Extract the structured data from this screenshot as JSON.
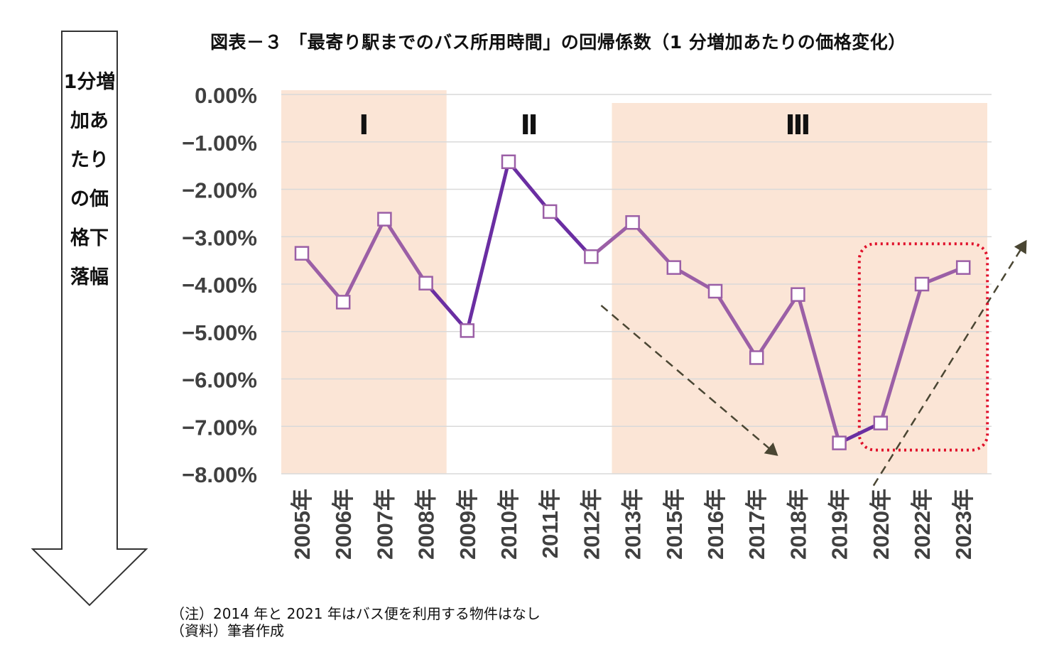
{
  "title": "図表－３ 「最寄り駅までのバス所用時間」の回帰係数（1 分増加あたりの価格変化）",
  "side_label": "1分増加あたりの価格下落幅",
  "notes": [
    "（注）2014 年と 2021 年はバス便を利用する物件はなし",
    "（資料）筆者作成"
  ],
  "colors": {
    "period_shade": "#fbe5d6",
    "line_light": "#9b5fa6",
    "line_dark": "#6a2ea2",
    "trend_arrow": "#4a4633",
    "highlight_box": "#e0102a",
    "grid": "#d9d9d9"
  },
  "chart_data": {
    "type": "line",
    "categories": [
      "2005年",
      "2006年",
      "2007年",
      "2008年",
      "2009年",
      "2010年",
      "2011年",
      "2012年",
      "2013年",
      "2015年",
      "2016年",
      "2017年",
      "2018年",
      "2019年",
      "2020年",
      "2022年",
      "2023年"
    ],
    "values": [
      -3.35,
      -4.38,
      -2.63,
      -3.98,
      -4.98,
      -1.42,
      -2.47,
      -3.42,
      -2.7,
      -3.65,
      -4.15,
      -5.55,
      -4.22,
      -7.35,
      -6.93,
      -4.0,
      -3.65
    ],
    "y_tick_labels": [
      "0.00%",
      "−1.00%",
      "−2.00%",
      "−3.00%",
      "−4.00%",
      "−5.00%",
      "−6.00%",
      "−7.00%",
      "−8.00%"
    ],
    "ylim": [
      -8,
      0
    ],
    "grid": true,
    "legend": "none",
    "periods": [
      {
        "label": "Ⅰ",
        "shaded": true,
        "start": "2005年",
        "end": "2008年"
      },
      {
        "label": "Ⅱ",
        "shaded": false,
        "start": "2009年",
        "end": "2012年"
      },
      {
        "label": "Ⅲ",
        "shaded": true,
        "start": "2013年",
        "end": "2023年"
      }
    ],
    "dark_segment": {
      "start": "2008年",
      "end": "2012年"
    },
    "dark_segment_2": {
      "start": "2019年",
      "end": "2020年"
    },
    "highlight": {
      "start": "2020年",
      "end": "2023年"
    }
  }
}
